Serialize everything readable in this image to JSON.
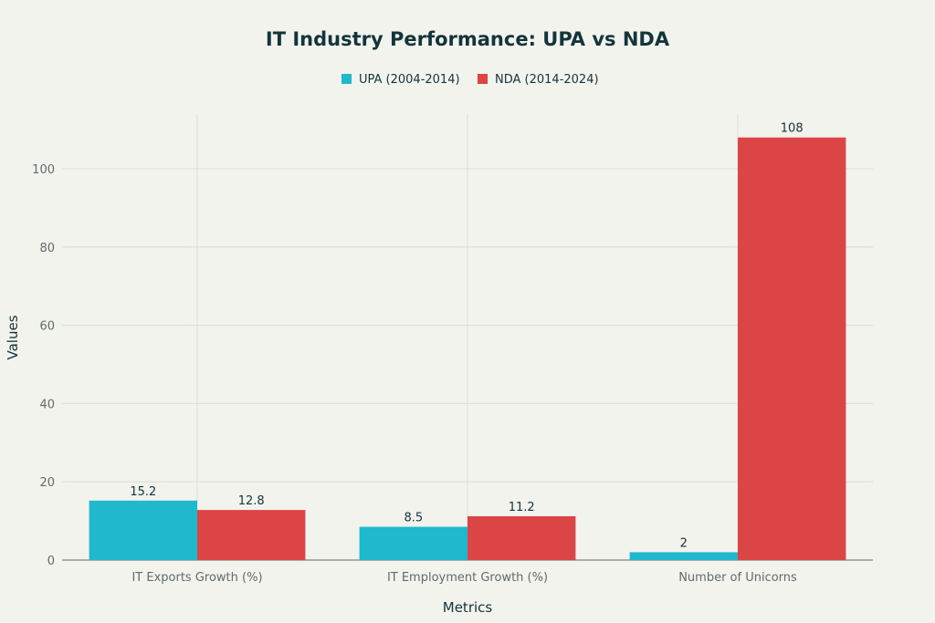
{
  "chart_data": {
    "type": "bar",
    "title": "IT Industry Performance: UPA vs NDA",
    "xlabel": "Metrics",
    "ylabel": "Values",
    "categories": [
      "IT Exports Growth (%)",
      "IT Employment Growth (%)",
      "Number of Unicorns"
    ],
    "series": [
      {
        "name": "UPA (2004-2014)",
        "color": "#1FB8CD",
        "values": [
          15.2,
          8.5,
          2
        ]
      },
      {
        "name": "NDA (2014-2024)",
        "color": "#DB4545",
        "values": [
          12.8,
          11.2,
          108
        ]
      }
    ],
    "data_labels": [
      [
        "15.2",
        "8.5",
        "2"
      ],
      [
        "12.8",
        "11.2",
        "108"
      ]
    ],
    "ylim": [
      0,
      114
    ],
    "yticks": [
      0,
      20,
      40,
      60,
      80,
      100
    ],
    "grid": true,
    "legend_position": "top-center"
  }
}
